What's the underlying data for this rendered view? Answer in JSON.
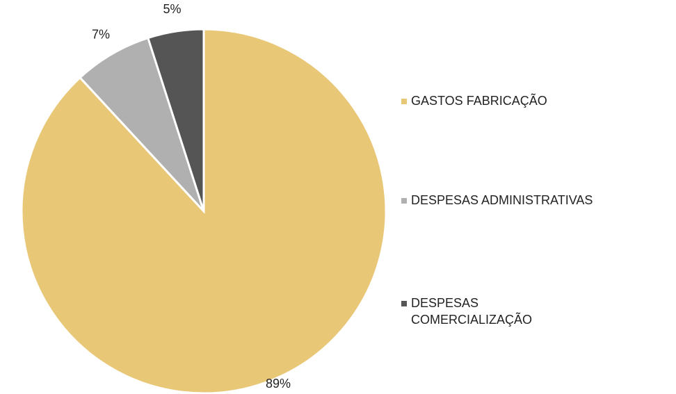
{
  "chart_data": {
    "type": "pie",
    "categories": [
      "GASTOS FABRICAÇÃO",
      "DESPESAS ADMINISTRATIVAS",
      "DESPESAS COMERCIALIZAÇÃO"
    ],
    "values": [
      89,
      7,
      5
    ],
    "value_labels": [
      "89%",
      "7%",
      "5%"
    ],
    "colors": [
      "#E8C777",
      "#B0B0B0",
      "#555555"
    ],
    "legend": "right"
  }
}
